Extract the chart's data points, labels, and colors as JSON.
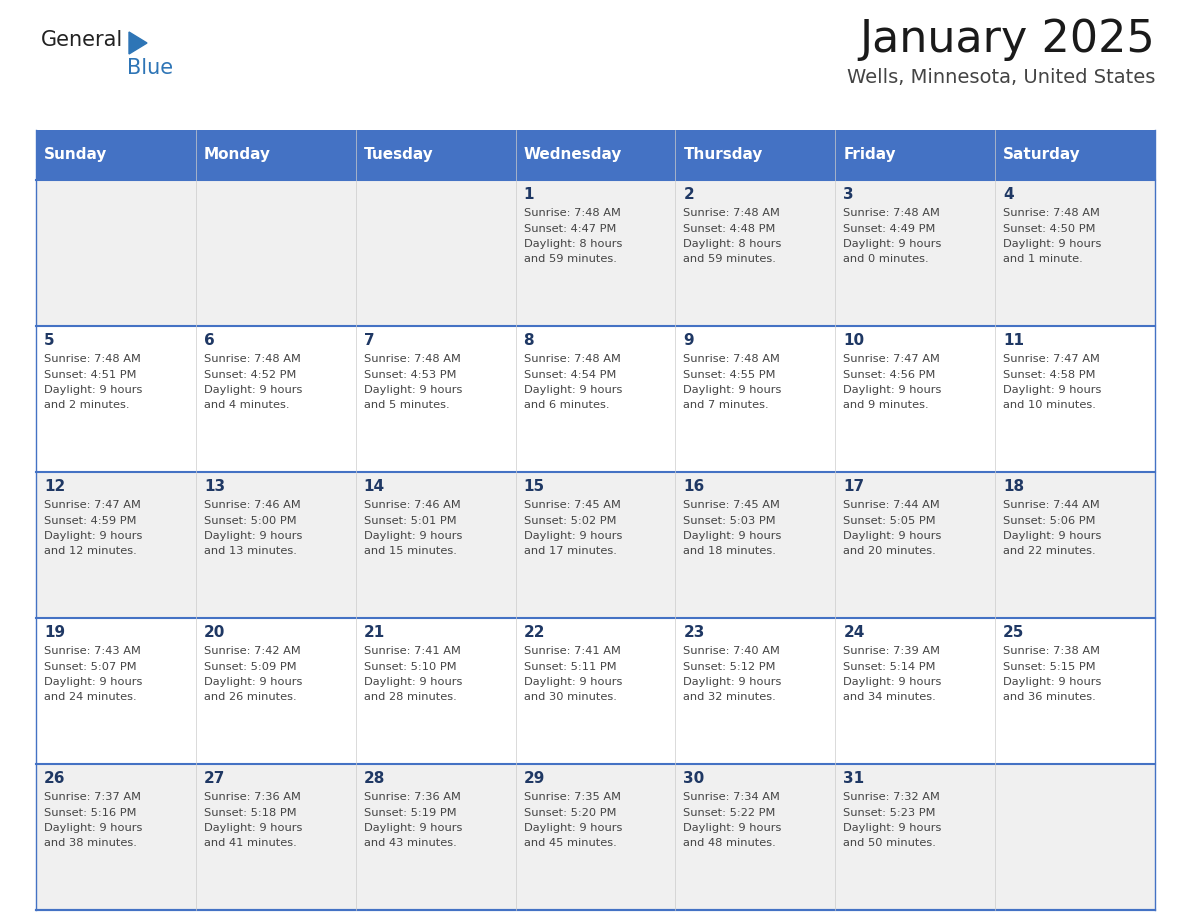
{
  "title": "January 2025",
  "subtitle": "Wells, Minnesota, United States",
  "header_bg": "#4472C4",
  "header_text_color": "#FFFFFF",
  "days_of_week": [
    "Sunday",
    "Monday",
    "Tuesday",
    "Wednesday",
    "Thursday",
    "Friday",
    "Saturday"
  ],
  "cell_bg_light": "#F0F0F0",
  "cell_bg_white": "#FFFFFF",
  "day_number_color": "#1F3864",
  "cell_text_color": "#444444",
  "divider_color": "#4472C4",
  "calendar": [
    [
      {
        "day": "",
        "sunrise": "",
        "sunset": "",
        "daylight": ""
      },
      {
        "day": "",
        "sunrise": "",
        "sunset": "",
        "daylight": ""
      },
      {
        "day": "",
        "sunrise": "",
        "sunset": "",
        "daylight": ""
      },
      {
        "day": "1",
        "sunrise": "7:48 AM",
        "sunset": "4:47 PM",
        "daylight": "8 hours\nand 59 minutes."
      },
      {
        "day": "2",
        "sunrise": "7:48 AM",
        "sunset": "4:48 PM",
        "daylight": "8 hours\nand 59 minutes."
      },
      {
        "day": "3",
        "sunrise": "7:48 AM",
        "sunset": "4:49 PM",
        "daylight": "9 hours\nand 0 minutes."
      },
      {
        "day": "4",
        "sunrise": "7:48 AM",
        "sunset": "4:50 PM",
        "daylight": "9 hours\nand 1 minute."
      }
    ],
    [
      {
        "day": "5",
        "sunrise": "7:48 AM",
        "sunset": "4:51 PM",
        "daylight": "9 hours\nand 2 minutes."
      },
      {
        "day": "6",
        "sunrise": "7:48 AM",
        "sunset": "4:52 PM",
        "daylight": "9 hours\nand 4 minutes."
      },
      {
        "day": "7",
        "sunrise": "7:48 AM",
        "sunset": "4:53 PM",
        "daylight": "9 hours\nand 5 minutes."
      },
      {
        "day": "8",
        "sunrise": "7:48 AM",
        "sunset": "4:54 PM",
        "daylight": "9 hours\nand 6 minutes."
      },
      {
        "day": "9",
        "sunrise": "7:48 AM",
        "sunset": "4:55 PM",
        "daylight": "9 hours\nand 7 minutes."
      },
      {
        "day": "10",
        "sunrise": "7:47 AM",
        "sunset": "4:56 PM",
        "daylight": "9 hours\nand 9 minutes."
      },
      {
        "day": "11",
        "sunrise": "7:47 AM",
        "sunset": "4:58 PM",
        "daylight": "9 hours\nand 10 minutes."
      }
    ],
    [
      {
        "day": "12",
        "sunrise": "7:47 AM",
        "sunset": "4:59 PM",
        "daylight": "9 hours\nand 12 minutes."
      },
      {
        "day": "13",
        "sunrise": "7:46 AM",
        "sunset": "5:00 PM",
        "daylight": "9 hours\nand 13 minutes."
      },
      {
        "day": "14",
        "sunrise": "7:46 AM",
        "sunset": "5:01 PM",
        "daylight": "9 hours\nand 15 minutes."
      },
      {
        "day": "15",
        "sunrise": "7:45 AM",
        "sunset": "5:02 PM",
        "daylight": "9 hours\nand 17 minutes."
      },
      {
        "day": "16",
        "sunrise": "7:45 AM",
        "sunset": "5:03 PM",
        "daylight": "9 hours\nand 18 minutes."
      },
      {
        "day": "17",
        "sunrise": "7:44 AM",
        "sunset": "5:05 PM",
        "daylight": "9 hours\nand 20 minutes."
      },
      {
        "day": "18",
        "sunrise": "7:44 AM",
        "sunset": "5:06 PM",
        "daylight": "9 hours\nand 22 minutes."
      }
    ],
    [
      {
        "day": "19",
        "sunrise": "7:43 AM",
        "sunset": "5:07 PM",
        "daylight": "9 hours\nand 24 minutes."
      },
      {
        "day": "20",
        "sunrise": "7:42 AM",
        "sunset": "5:09 PM",
        "daylight": "9 hours\nand 26 minutes."
      },
      {
        "day": "21",
        "sunrise": "7:41 AM",
        "sunset": "5:10 PM",
        "daylight": "9 hours\nand 28 minutes."
      },
      {
        "day": "22",
        "sunrise": "7:41 AM",
        "sunset": "5:11 PM",
        "daylight": "9 hours\nand 30 minutes."
      },
      {
        "day": "23",
        "sunrise": "7:40 AM",
        "sunset": "5:12 PM",
        "daylight": "9 hours\nand 32 minutes."
      },
      {
        "day": "24",
        "sunrise": "7:39 AM",
        "sunset": "5:14 PM",
        "daylight": "9 hours\nand 34 minutes."
      },
      {
        "day": "25",
        "sunrise": "7:38 AM",
        "sunset": "5:15 PM",
        "daylight": "9 hours\nand 36 minutes."
      }
    ],
    [
      {
        "day": "26",
        "sunrise": "7:37 AM",
        "sunset": "5:16 PM",
        "daylight": "9 hours\nand 38 minutes."
      },
      {
        "day": "27",
        "sunrise": "7:36 AM",
        "sunset": "5:18 PM",
        "daylight": "9 hours\nand 41 minutes."
      },
      {
        "day": "28",
        "sunrise": "7:36 AM",
        "sunset": "5:19 PM",
        "daylight": "9 hours\nand 43 minutes."
      },
      {
        "day": "29",
        "sunrise": "7:35 AM",
        "sunset": "5:20 PM",
        "daylight": "9 hours\nand 45 minutes."
      },
      {
        "day": "30",
        "sunrise": "7:34 AM",
        "sunset": "5:22 PM",
        "daylight": "9 hours\nand 48 minutes."
      },
      {
        "day": "31",
        "sunrise": "7:32 AM",
        "sunset": "5:23 PM",
        "daylight": "9 hours\nand 50 minutes."
      },
      {
        "day": "",
        "sunrise": "",
        "sunset": "",
        "daylight": ""
      }
    ]
  ],
  "logo_general_color": "#222222",
  "logo_blue_color": "#2E75B6",
  "logo_triangle_color": "#2E75B6",
  "title_fontsize": 32,
  "subtitle_fontsize": 14,
  "header_fontsize": 11,
  "day_num_fontsize": 11,
  "cell_fontsize": 8.2
}
